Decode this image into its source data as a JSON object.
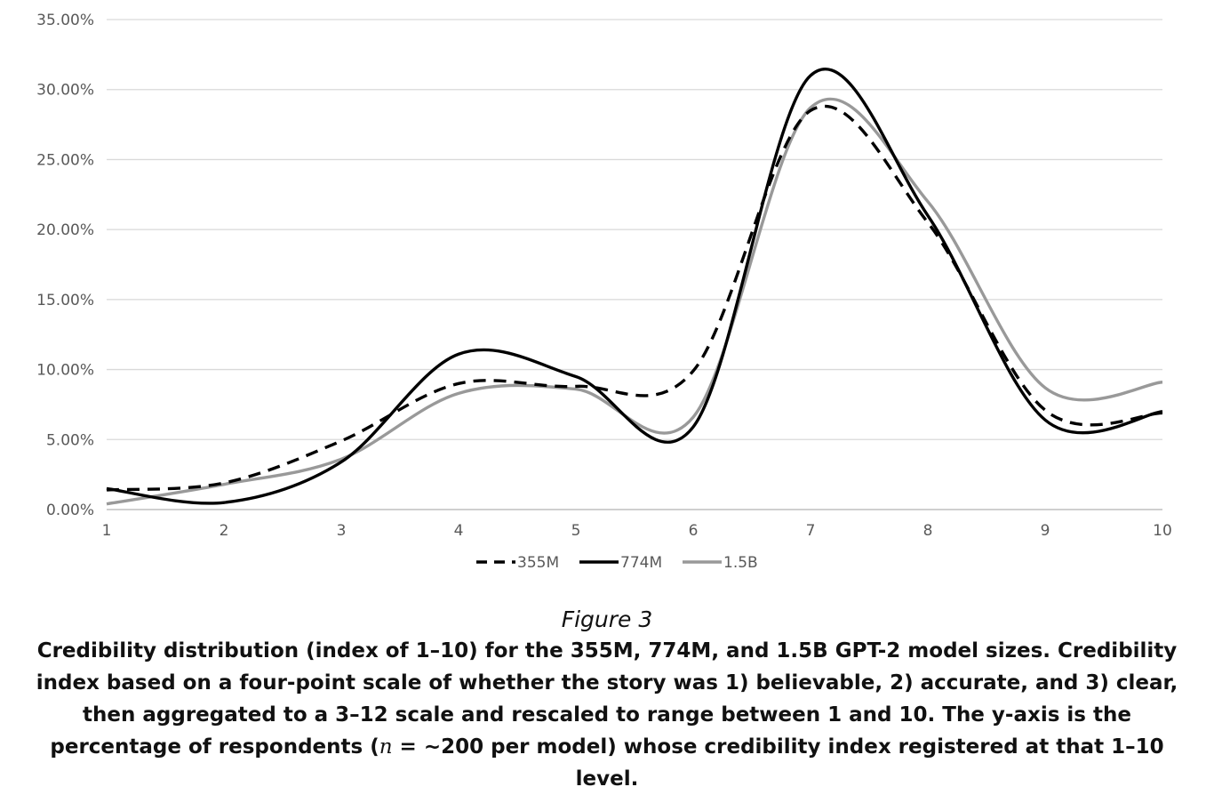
{
  "chart_data": {
    "type": "line",
    "x": [
      1,
      2,
      3,
      4,
      5,
      6,
      7,
      8,
      9,
      10
    ],
    "x_tick_labels": [
      "1",
      "2",
      "3",
      "4",
      "5",
      "6",
      "7",
      "8",
      "9",
      "10"
    ],
    "y_tick_labels": [
      "0.00%",
      "5.00%",
      "10.00%",
      "15.00%",
      "20.00%",
      "25.00%",
      "30.00%",
      "35.00%"
    ],
    "ylim": [
      0,
      35
    ],
    "xlim": [
      1,
      10
    ],
    "grid": "horizontal",
    "legend_position": "bottom",
    "series": [
      {
        "name": "355M",
        "style": "dashed",
        "color": "#000000",
        "values": [
          1.4,
          1.9,
          4.9,
          9.0,
          8.8,
          9.9,
          28.5,
          20.5,
          7.1,
          6.9
        ]
      },
      {
        "name": "774M",
        "style": "solid",
        "color": "#000000",
        "values": [
          1.5,
          0.5,
          3.4,
          11.1,
          9.5,
          5.9,
          31.0,
          21.0,
          6.4,
          7.0
        ]
      },
      {
        "name": "1.5B",
        "style": "solid",
        "color": "#999999",
        "values": [
          0.4,
          1.8,
          3.6,
          8.3,
          8.6,
          6.6,
          28.7,
          22.0,
          8.7,
          9.1
        ]
      }
    ]
  },
  "caption": {
    "figure_label": "Figure 3",
    "text": "Credibility distribution (index of 1–10) for the 355M, 774M, and 1.5B GPT-2 model sizes. Credibility index based on a four-point scale of whether the story was 1) believable, 2) accurate, and 3) clear, then aggregated to a 3–12 scale and rescaled to range between 1 and 10. The y-axis is the percentage of respondents (",
    "n_symbol": "n",
    "text_after_n": " = ~200 per model) whose credibility index registered at that 1–10 level."
  }
}
